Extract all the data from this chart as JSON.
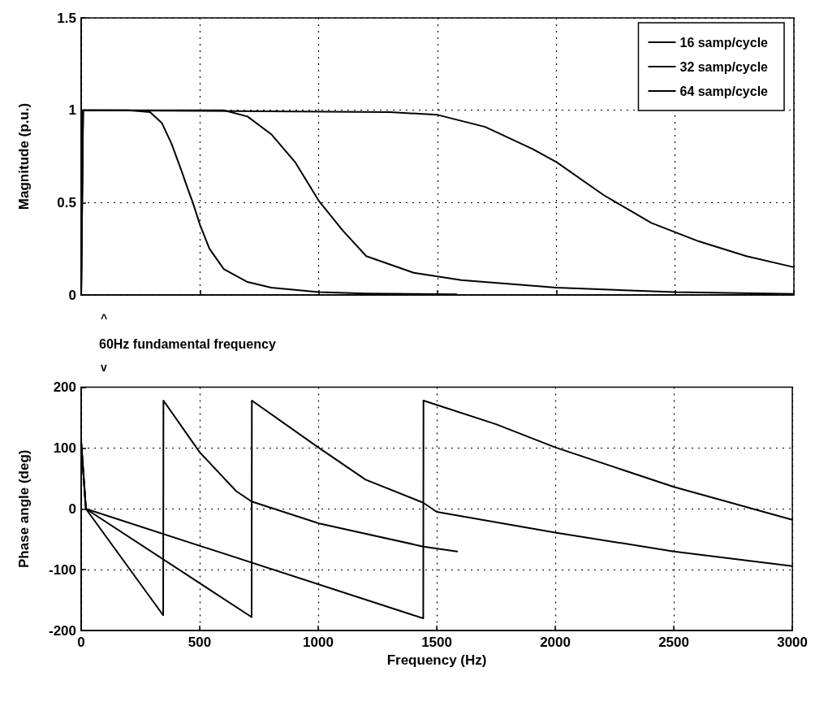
{
  "chart_data": [
    {
      "type": "line",
      "ylabel": "Magnitude (p.u.)",
      "xlim": [
        0,
        3000
      ],
      "xticks": [
        0,
        500,
        1000,
        1500,
        2000,
        2500,
        3000
      ],
      "ylim": [
        0,
        1.5
      ],
      "yticks": [
        0,
        0.5,
        1,
        1.5
      ],
      "tick_labels": "y",
      "grid": true,
      "legend": "top right",
      "line_style": "solid",
      "annotations": [
        "^",
        "60Hz fundamental frequency",
        "v"
      ],
      "series": [
        {
          "name": "16 samp/cycle",
          "color": "#000000",
          "x": [
            0,
            8,
            200,
            290,
            340,
            380,
            420,
            450,
            470,
            500,
            540,
            600,
            700,
            800,
            1000,
            1200,
            1580
          ],
          "values": [
            0,
            1,
            1,
            0.99,
            0.93,
            0.82,
            0.68,
            0.57,
            0.5,
            0.38,
            0.25,
            0.14,
            0.07,
            0.04,
            0.015,
            0.008,
            0.003
          ]
        },
        {
          "name": "32 samp/cycle",
          "color": "#000000",
          "x": [
            0,
            8,
            600,
            700,
            800,
            900,
            1000,
            1100,
            1200,
            1400,
            1600,
            2000,
            2500,
            3000
          ],
          "values": [
            0,
            1,
            1,
            0.966,
            0.87,
            0.72,
            0.51,
            0.35,
            0.21,
            0.12,
            0.08,
            0.04,
            0.015,
            0.005
          ]
        },
        {
          "name": "64 samp/cycle",
          "color": "#000000",
          "x": [
            0,
            8,
            1300,
            1500,
            1700,
            1900,
            2000,
            2200,
            2400,
            2600,
            2800,
            3000
          ],
          "values": [
            0,
            1,
            0.99,
            0.975,
            0.91,
            0.79,
            0.72,
            0.54,
            0.39,
            0.29,
            0.21,
            0.15
          ]
        }
      ]
    },
    {
      "type": "line",
      "xlabel": "Frequency (Hz)",
      "ylabel": "Phase angle (deg)",
      "xlim": [
        0,
        3000
      ],
      "xticks": [
        0,
        500,
        1000,
        1500,
        2000,
        2500,
        3000
      ],
      "ylim": [
        -200,
        200
      ],
      "yticks": [
        -200,
        -100,
        0,
        100,
        200
      ],
      "grid": true,
      "line_style": "solid",
      "series": [
        {
          "color": "#000000",
          "x": [
            0,
            20,
            346,
            347,
            500,
            654,
            719,
            1004,
            1443,
            1586
          ],
          "values": [
            110,
            0,
            -175,
            178,
            93,
            29,
            12,
            -24,
            -62,
            -70
          ]
        },
        {
          "color": "#000000",
          "x": [
            0,
            20,
            719,
            720,
            1000,
            1200,
            1443,
            1500,
            2000,
            2500,
            3000
          ],
          "values": [
            110,
            0,
            -178,
            178,
            101,
            48,
            10,
            -5,
            -39,
            -70,
            -94
          ]
        },
        {
          "color": "#000000",
          "x": [
            0,
            20,
            1443,
            1444,
            1750,
            2000,
            2500,
            3000
          ],
          "values": [
            110,
            0,
            -180,
            178,
            139,
            101,
            36,
            -18
          ]
        }
      ]
    }
  ]
}
